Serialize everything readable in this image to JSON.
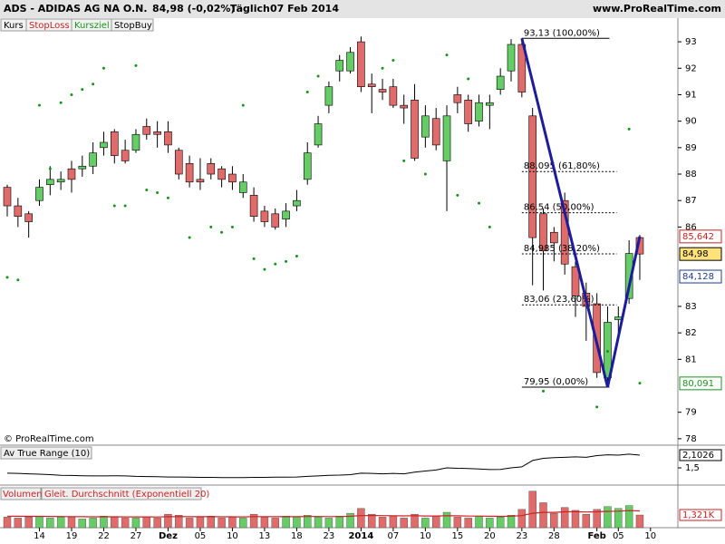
{
  "header": {
    "symbol": "ADS - ADIDAS AG NA O.N.",
    "quote": "84,98 (-0,02%)",
    "period": "Täglich",
    "date": "07 Feb 2014",
    "site": "www.ProRealTime.com"
  },
  "toolbar": [
    "Kurs",
    "StopLoss",
    "Kursziel",
    "StopBuy"
  ],
  "chart_data": [
    {
      "type": "candlestick",
      "categories": [
        null,
        null,
        null,
        "14",
        null,
        null,
        "19",
        null,
        null,
        "22",
        null,
        null,
        "27",
        null,
        null,
        "Dez",
        null,
        null,
        "05",
        null,
        null,
        "10",
        null,
        null,
        "13",
        null,
        null,
        "18",
        null,
        null,
        "23",
        null,
        null,
        "2014",
        null,
        null,
        "07",
        null,
        null,
        "10",
        null,
        null,
        "15",
        null,
        null,
        "20",
        null,
        null,
        "23",
        null,
        null,
        "28",
        null,
        null,
        null,
        "Feb",
        null,
        "05",
        null,
        null,
        "10"
      ],
      "open": [
        87.5,
        86.8,
        86.5,
        87.0,
        87.6,
        87.7,
        88.2,
        88.2,
        88.3,
        89.0,
        89.6,
        88.9,
        88.9,
        89.8,
        89.6,
        89.6,
        88.9,
        88.4,
        87.8,
        88.4,
        88.2,
        88.0,
        87.3,
        87.2,
        86.6,
        86.5,
        86.3,
        86.8,
        87.8,
        89.1,
        90.6,
        91.9,
        91.9,
        93.0,
        91.4,
        91.2,
        91.3,
        90.6,
        90.8,
        89.4,
        90.1,
        88.5,
        91.0,
        90.8,
        90.0,
        90.6,
        91.2,
        91.9,
        92.9,
        90.2,
        86.5,
        85.8,
        87.0,
        84.5,
        83.5,
        83.1,
        80.3,
        82.5,
        83.3,
        85.6,
        null
      ],
      "high": [
        87.6,
        87.1,
        86.6,
        87.8,
        88.3,
        88.1,
        88.5,
        88.7,
        89.2,
        89.6,
        89.7,
        89.3,
        89.7,
        90.1,
        90.0,
        90.0,
        89.0,
        88.7,
        88.6,
        88.6,
        88.3,
        88.3,
        88.0,
        87.5,
        86.8,
        86.7,
        86.9,
        87.4,
        89.2,
        90.2,
        91.5,
        92.5,
        92.8,
        93.2,
        91.8,
        91.6,
        91.6,
        91.0,
        91.4,
        90.6,
        90.5,
        90.6,
        91.3,
        91.0,
        91.0,
        91.0,
        92.0,
        93.1,
        93.13,
        90.5,
        86.7,
        86.0,
        87.3,
        84.7,
        83.9,
        83.5,
        83.0,
        83.0,
        85.5,
        85.7,
        null
      ],
      "low": [
        86.4,
        86.0,
        85.6,
        86.8,
        87.2,
        87.4,
        87.3,
        87.9,
        88.0,
        88.7,
        88.4,
        88.4,
        88.8,
        89.3,
        89.0,
        88.8,
        87.8,
        87.5,
        87.4,
        87.8,
        87.5,
        87.4,
        87.1,
        86.2,
        86.0,
        85.9,
        86.0,
        86.6,
        87.6,
        89.0,
        90.3,
        91.5,
        91.8,
        91.1,
        90.3,
        90.8,
        90.5,
        89.9,
        88.5,
        89.0,
        88.9,
        86.6,
        90.3,
        89.6,
        89.8,
        89.7,
        91.0,
        91.5,
        90.9,
        83.8,
        83.6,
        84.7,
        84.2,
        82.6,
        81.7,
        80.3,
        79.95,
        82.0,
        83.1,
        84.0,
        null
      ],
      "close": [
        86.8,
        86.4,
        86.2,
        87.5,
        87.8,
        87.8,
        87.8,
        88.3,
        88.8,
        89.2,
        88.7,
        88.5,
        89.5,
        89.5,
        89.5,
        89.1,
        88.0,
        87.7,
        87.7,
        88.0,
        87.8,
        87.7,
        87.7,
        86.4,
        86.2,
        86.0,
        86.6,
        87.0,
        88.8,
        89.9,
        91.3,
        92.3,
        92.6,
        91.3,
        91.3,
        91.1,
        90.6,
        90.5,
        88.6,
        90.2,
        89.1,
        90.2,
        90.7,
        89.9,
        90.7,
        90.7,
        91.7,
        92.9,
        91.1,
        85.6,
        85.1,
        85.4,
        84.6,
        83.4,
        83.0,
        80.5,
        82.4,
        82.6,
        85.0,
        84.98,
        null
      ],
      "colors": {
        "up": "#66cc66",
        "down": "#e06b6b"
      },
      "ylim": [
        77.79,
        93.38
      ],
      "yticks": [
        78,
        79,
        81,
        82,
        83,
        86,
        87,
        88,
        89,
        90,
        91,
        92,
        93
      ],
      "stop_dots": {
        "color": "#18941c",
        "values": [
          84.1,
          84.0,
          null,
          90.6,
          88.2,
          90.7,
          91.0,
          91.2,
          91.4,
          92.0,
          86.8,
          86.8,
          92.1,
          87.4,
          87.3,
          87.1,
          null,
          85.6,
          null,
          86.0,
          85.8,
          86.0,
          90.6,
          84.8,
          84.4,
          84.6,
          84.7,
          84.9,
          91.1,
          91.7,
          null,
          null,
          null,
          null,
          null,
          92.0,
          92.3,
          88.5,
          null,
          88.0,
          null,
          92.5,
          87.2,
          91.6,
          86.9,
          86.0,
          null,
          null,
          null,
          null,
          79.8,
          null,
          null,
          null,
          null,
          79.2,
          81.3,
          null,
          89.7,
          80.1,
          null
        ]
      },
      "fibonacci": [
        {
          "value": 93.13,
          "label": "93,13 (100,00%)"
        },
        {
          "value": 88.095,
          "label": "88,095 (61,80%)"
        },
        {
          "value": 86.54,
          "label": "86,54 (50,00%)"
        },
        {
          "value": 84.985,
          "label": "84,985 (38,20%)"
        },
        {
          "value": 83.06,
          "label": "83,06 (23,60%)"
        },
        {
          "value": 79.95,
          "label": "79,95 (0,00%)"
        }
      ],
      "trend": {
        "color": "#1c1c9c",
        "x": [
          48,
          56,
          59
        ],
        "values": [
          93.13,
          79.95,
          85.642
        ]
      },
      "price_labels": [
        {
          "value": 85.642,
          "label": "85,642",
          "color": "#cc2222"
        },
        {
          "value": 84.98,
          "label": "84,98",
          "color": "#000000"
        },
        {
          "value": 84.128,
          "label": "84,128",
          "color": "#1c3c8c"
        },
        {
          "value": 80.091,
          "label": "80,091",
          "color": "#18941c"
        }
      ],
      "watermark": "© ProRealTime.com"
    },
    {
      "type": "line",
      "title": "Av True Range (10)",
      "color": "#000000",
      "values": [
        1.25,
        1.24,
        1.22,
        1.2,
        1.18,
        1.15,
        1.14,
        1.13,
        1.12,
        1.12,
        1.13,
        1.12,
        1.1,
        1.09,
        1.08,
        1.07,
        1.07,
        1.06,
        1.05,
        1.05,
        1.04,
        1.04,
        1.04,
        1.05,
        1.05,
        1.06,
        1.06,
        1.07,
        1.1,
        1.12,
        1.15,
        1.16,
        1.18,
        1.25,
        1.24,
        1.22,
        1.24,
        1.22,
        1.3,
        1.35,
        1.4,
        1.5,
        1.48,
        1.47,
        1.45,
        1.42,
        1.43,
        1.5,
        1.55,
        1.85,
        1.95,
        1.98,
        2.0,
        2.02,
        2.0,
        2.08,
        2.12,
        2.1,
        2.15,
        2.1026,
        null
      ],
      "ylim": [
        0.73,
        2.53
      ],
      "yticks": [
        {
          "value": 1.5,
          "label": "1,5"
        }
      ],
      "last_label": {
        "value": 2.1026,
        "label": "2,1026"
      }
    },
    {
      "type": "bar",
      "title": "Volumen",
      "values": [
        1.1,
        1.0,
        1.1,
        1.2,
        1.0,
        1.1,
        1.1,
        0.9,
        1.0,
        1.2,
        1.1,
        1.0,
        1.0,
        1.1,
        1.0,
        1.4,
        1.3,
        1.0,
        1.1,
        1.2,
        1.0,
        1.1,
        1.0,
        1.4,
        1.1,
        1.0,
        1.2,
        1.1,
        1.3,
        1.1,
        1.0,
        1.2,
        1.5,
        2.0,
        1.4,
        1.1,
        1.2,
        1.0,
        1.4,
        1.0,
        1.2,
        1.6,
        1.1,
        1.0,
        1.2,
        1.0,
        1.1,
        1.3,
        1.9,
        3.8,
        2.6,
        1.5,
        2.1,
        1.8,
        1.4,
        1.9,
        2.2,
        2.0,
        2.3,
        1.321,
        null
      ],
      "ma": {
        "name": "Gleit. Durchschnitt (Exponentiell 20)",
        "color": "#cc2222",
        "values": [
          1.2,
          1.19,
          1.18,
          1.18,
          1.17,
          1.16,
          1.15,
          1.14,
          1.13,
          1.13,
          1.13,
          1.12,
          1.12,
          1.12,
          1.11,
          1.14,
          1.15,
          1.14,
          1.14,
          1.14,
          1.13,
          1.13,
          1.12,
          1.15,
          1.15,
          1.14,
          1.14,
          1.14,
          1.16,
          1.16,
          1.15,
          1.15,
          1.19,
          1.26,
          1.27,
          1.26,
          1.25,
          1.23,
          1.25,
          1.22,
          1.22,
          1.25,
          1.24,
          1.21,
          1.21,
          1.19,
          1.18,
          1.19,
          1.26,
          1.5,
          1.6,
          1.6,
          1.65,
          1.66,
          1.63,
          1.65,
          1.7,
          1.72,
          1.78,
          1.75,
          null
        ]
      },
      "ylim": [
        0,
        4.25
      ],
      "last_label": {
        "value": 1.321,
        "label": "1,321K"
      }
    }
  ]
}
